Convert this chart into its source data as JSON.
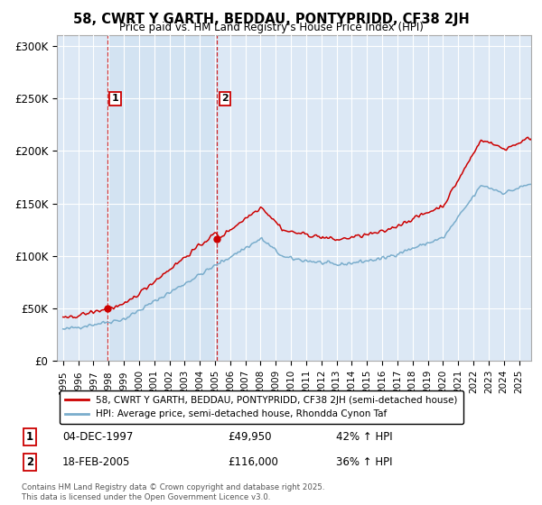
{
  "title": "58, CWRT Y GARTH, BEDDAU, PONTYPRIDD, CF38 2JH",
  "subtitle": "Price paid vs. HM Land Registry's House Price Index (HPI)",
  "ylim": [
    0,
    310000
  ],
  "yticks": [
    0,
    50000,
    100000,
    150000,
    200000,
    250000,
    300000
  ],
  "ytick_labels": [
    "£0",
    "£50K",
    "£100K",
    "£150K",
    "£200K",
    "£250K",
    "£300K"
  ],
  "plot_bg_color": "#dce8f5",
  "grid_color": "#ffffff",
  "red_line_color": "#cc0000",
  "blue_line_color": "#7aadcc",
  "purchase1_date_x": 1997.92,
  "purchase1_price": 49950,
  "purchase1_label": "04-DEC-1997",
  "purchase1_amount": "£49,950",
  "purchase1_hpi": "42% ↑ HPI",
  "purchase2_date_x": 2005.12,
  "purchase2_price": 116000,
  "purchase2_label": "18-FEB-2005",
  "purchase2_amount": "£116,000",
  "purchase2_hpi": "36% ↑ HPI",
  "legend_line1": "58, CWRT Y GARTH, BEDDAU, PONTYPRIDD, CF38 2JH (semi-detached house)",
  "legend_line2": "HPI: Average price, semi-detached house, Rhondda Cynon Taf",
  "footnote": "Contains HM Land Registry data © Crown copyright and database right 2025.\nThis data is licensed under the Open Government Licence v3.0.",
  "xmin": 1994.6,
  "xmax": 2025.8
}
